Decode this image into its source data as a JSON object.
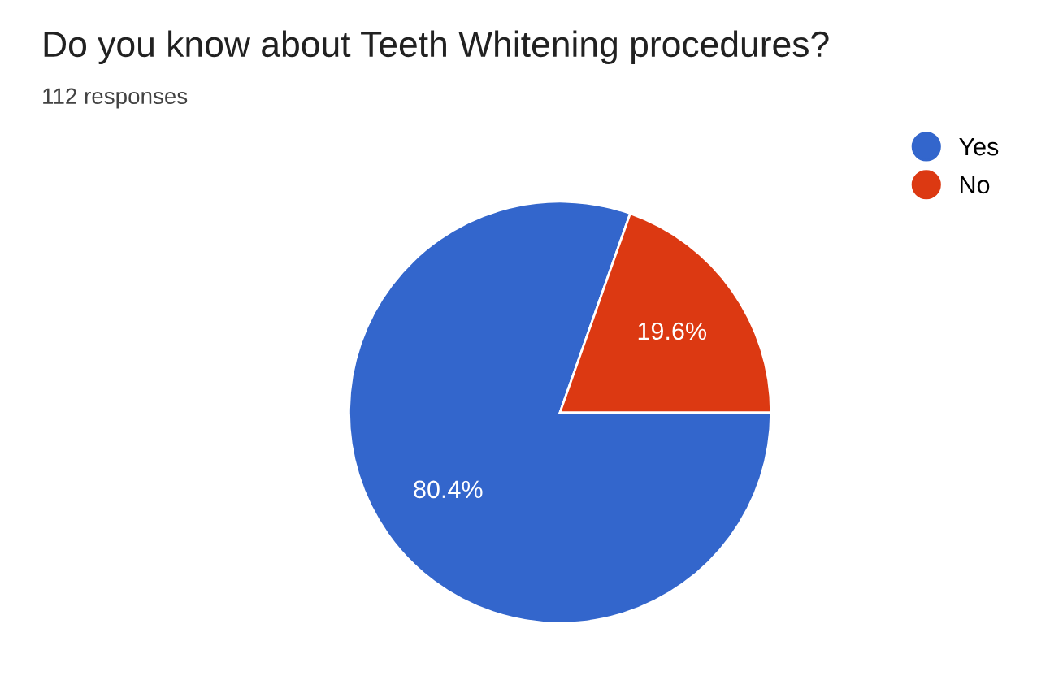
{
  "chart_data": {
    "type": "pie",
    "title": "Do you know about Teeth Whitening procedures?",
    "subtitle": "112 responses",
    "categories": [
      "Yes",
      "No"
    ],
    "values": [
      80.4,
      19.6
    ],
    "value_labels": [
      "80.4%",
      "19.6%"
    ],
    "colors": [
      "#3366cc",
      "#dc3912"
    ],
    "legend": "top right"
  }
}
